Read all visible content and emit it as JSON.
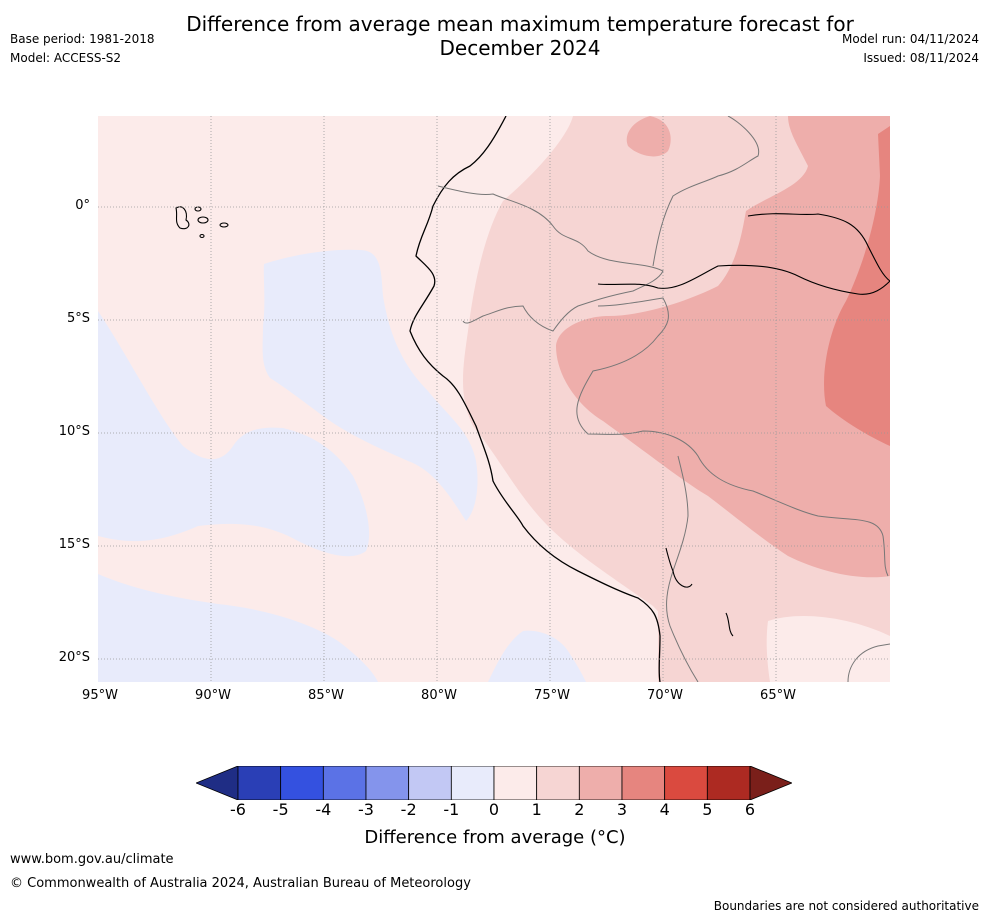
{
  "title": "Difference from average mean maximum temperature forecast for December 2024",
  "header": {
    "base_period": "Base period: 1981-2018",
    "model": "Model: ACCESS-S2",
    "model_run": "Model run: 04/11/2024",
    "issued": "Issued: 08/11/2024"
  },
  "map": {
    "lat_labels": [
      "0°",
      "5°S",
      "10°S",
      "15°S",
      "20°S"
    ],
    "lon_labels": [
      "95°W",
      "90°W",
      "85°W",
      "80°W",
      "75°W",
      "70°W",
      "65°W"
    ]
  },
  "colorbar": {
    "ticks": [
      "-6",
      "-5",
      "-4",
      "-3",
      "-2",
      "-1",
      "0",
      "1",
      "2",
      "3",
      "4",
      "5",
      "6"
    ],
    "colors": [
      "#1f2d85",
      "#2a3fb6",
      "#3451e0",
      "#5b72e6",
      "#8494ec",
      "#c2c8f4",
      "#e8ebfb",
      "#fcebea",
      "#f6d5d3",
      "#eeaeab",
      "#e6857f",
      "#da4a3f",
      "#ad2a22",
      "#7a1f1a"
    ],
    "label": "Difference from average (°C)"
  },
  "footer": {
    "website": "www.bom.gov.au/climate",
    "copyright": "© Commonwealth of Australia 2024, Australian Bureau of Meteorology",
    "disclaimer": "Boundaries are not considered authoritative"
  }
}
